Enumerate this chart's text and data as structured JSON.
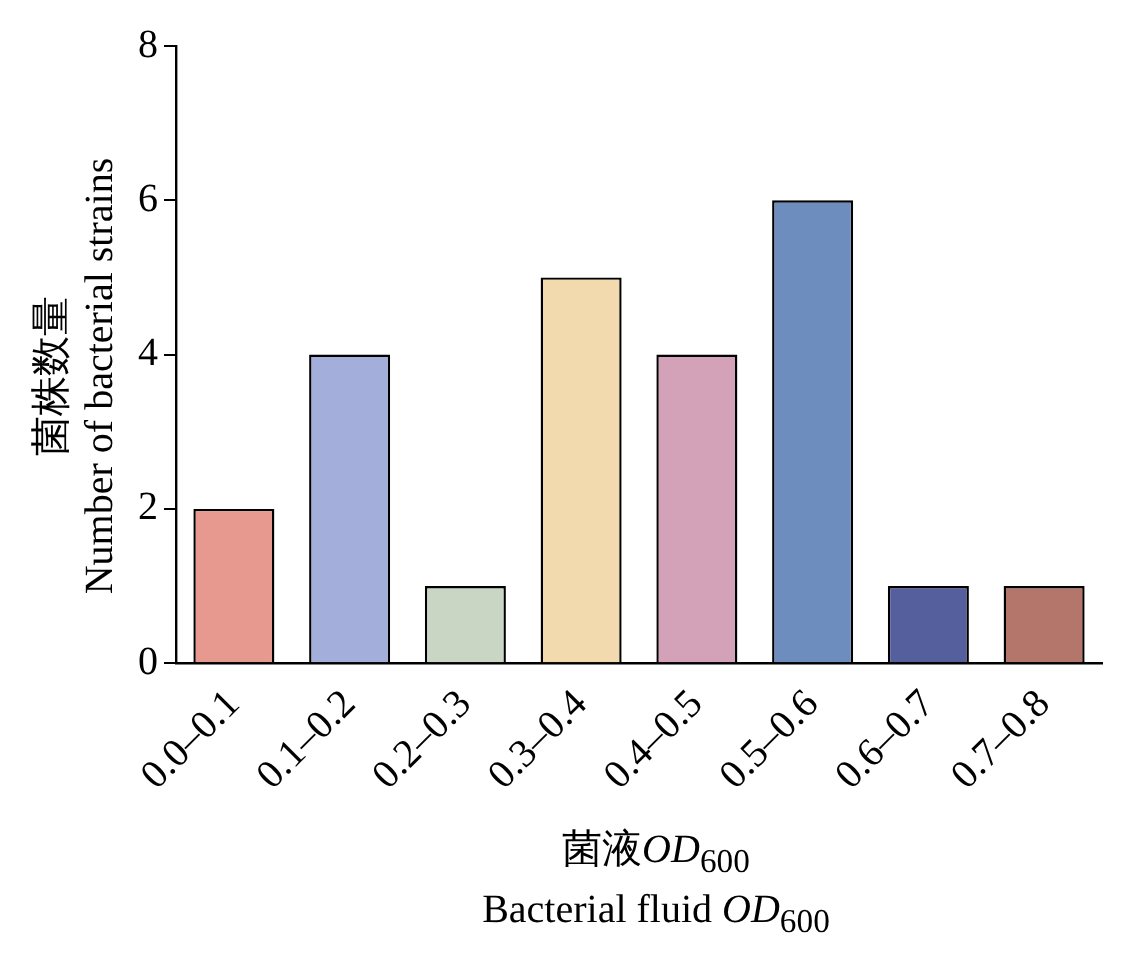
{
  "chart_data": {
    "type": "bar",
    "xlabel": "菌液OD$_{600}$\nBacterial fluid OD$_{600}$",
    "ylabel": "菌株数量\nNumber of bacterial strains",
    "categories": [
      "0.0–0.1",
      "0.1–0.2",
      "0.2–0.3",
      "0.3–0.4",
      "0.4–0.5",
      "0.5–0.6",
      "0.6–0.7",
      "0.7–0.8"
    ],
    "values": [
      2,
      4,
      1,
      5,
      4,
      6,
      1,
      1
    ],
    "colors": [
      "#e8998f",
      "#a3aedb",
      "#c9d6c3",
      "#f3d9ae",
      "#d3a2b8",
      "#6e8dbf",
      "#555f9e",
      "#b4756a"
    ],
    "ylim": [
      0,
      8
    ],
    "yticks": [
      0,
      2,
      4,
      6,
      8
    ],
    "grid": false,
    "legend": false
  }
}
